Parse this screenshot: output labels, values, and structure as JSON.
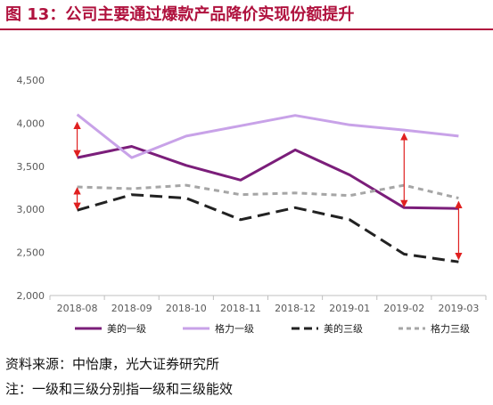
{
  "title": "图 13：公司主要通过爆款产品降价实现份额提升",
  "source": "资料来源：中怡康，光大证券研究所",
  "note": "注：一级和三级分别指一级和三级能效",
  "chart_data": {
    "type": "line",
    "categories": [
      "2018-08",
      "2018-09",
      "2018-10",
      "2018-11",
      "2018-12",
      "2019-01",
      "2019-02",
      "2019-03"
    ],
    "ylim": [
      2000,
      4500
    ],
    "yticks": [
      2000,
      2500,
      3000,
      3500,
      4000,
      4500
    ],
    "ytick_labels": [
      "2,000",
      "2,500",
      "3,000",
      "3,500",
      "4,000",
      "4,500"
    ],
    "legend_position": "bottom",
    "series": [
      {
        "name": "美的一级",
        "color": "#7b1e7a",
        "dash": "solid",
        "values": [
          3600,
          3730,
          3510,
          3340,
          3690,
          3400,
          3020,
          3010
        ]
      },
      {
        "name": "格力一级",
        "color": "#c8a2e8",
        "dash": "solid",
        "values": [
          4100,
          3600,
          3850,
          3970,
          4090,
          3980,
          3920,
          3850
        ]
      },
      {
        "name": "美的三级",
        "color": "#222222",
        "dash": "long",
        "values": [
          2990,
          3170,
          3130,
          2880,
          3020,
          2880,
          2480,
          2390
        ]
      },
      {
        "name": "格力三级",
        "color": "#a6a6a6",
        "dash": "short",
        "values": [
          3260,
          3240,
          3280,
          3170,
          3190,
          3160,
          3280,
          3130
        ]
      }
    ],
    "annotations": [
      {
        "type": "double-arrow",
        "color": "#e02020",
        "category": "2018-08",
        "from": 3610,
        "to": 4010
      },
      {
        "type": "double-arrow",
        "color": "#e02020",
        "category": "2018-08",
        "from": 3000,
        "to": 3250
      },
      {
        "type": "double-arrow",
        "color": "#e02020",
        "category": "2019-02",
        "from": 3030,
        "to": 3880
      },
      {
        "type": "double-arrow",
        "color": "#e02020",
        "category": "2019-03",
        "from": 2420,
        "to": 3090
      }
    ]
  }
}
